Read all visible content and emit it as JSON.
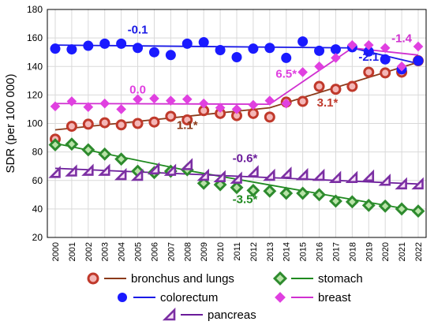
{
  "chart_data": {
    "type": "scatter",
    "title": "",
    "xlabel": "",
    "ylabel": "SDR (per 100 000)",
    "xlim": [
      2000,
      2022
    ],
    "ylim": [
      20,
      180
    ],
    "yticks": [
      20,
      40,
      60,
      80,
      100,
      120,
      140,
      160,
      180
    ],
    "x": [
      2000,
      2001,
      2002,
      2003,
      2004,
      2005,
      2006,
      2007,
      2008,
      2009,
      2010,
      2011,
      2012,
      2013,
      2014,
      2015,
      2016,
      2017,
      2018,
      2019,
      2020,
      2021,
      2022
    ],
    "grid": true,
    "legend_position": "bottom",
    "series": [
      {
        "name": "bronchus and lungs",
        "color": "#c0392b",
        "line_color": "#8b3a1a",
        "marker": "ring",
        "values": [
          89,
          98,
          99.5,
          100.5,
          99,
          100,
          101,
          105,
          102.5,
          109,
          107,
          105.5,
          107,
          104.5,
          115,
          115.5,
          126,
          124,
          126,
          136,
          135.5,
          136,
          144
        ],
        "trend": [
          [
            2000,
            95.5
          ],
          [
            2013,
            111
          ],
          [
            2022,
            143
          ]
        ]
      },
      {
        "name": "stomach",
        "color": "#2e8b2e",
        "line_color": "#1f8a1f",
        "marker": "diamond",
        "values": [
          85,
          85.5,
          81.5,
          78.5,
          75,
          66.5,
          65.5,
          66.5,
          67.5,
          58,
          57,
          55,
          53,
          52.5,
          51,
          51,
          50,
          45.5,
          45,
          42.5,
          42,
          40,
          38.5
        ],
        "trend": [
          [
            2000,
            86
          ],
          [
            2008,
            67
          ],
          [
            2022,
            38.5
          ]
        ]
      },
      {
        "name": "colorectum",
        "color": "#1a1aff",
        "line_color": "#1a1ae6",
        "marker": "circle",
        "values": [
          152.5,
          152,
          154.5,
          156,
          156,
          153,
          150,
          148,
          156,
          157,
          151.5,
          146.5,
          152.5,
          153,
          146,
          157.5,
          151,
          152,
          153.5,
          150.5,
          145,
          138,
          144
        ],
        "trend": [
          [
            2000,
            155
          ],
          [
            2018,
            153
          ],
          [
            2022,
            142
          ]
        ]
      },
      {
        "name": "breast",
        "color": "#e040e0",
        "line_color": "#d030d0",
        "marker": "diamond",
        "values": [
          112,
          115.5,
          111.5,
          114,
          110,
          117,
          117.5,
          116,
          117,
          114,
          111,
          110,
          113,
          116,
          114,
          136,
          140,
          146,
          155,
          155,
          153,
          140,
          154
        ],
        "trend": [
          [
            2000,
            114
          ],
          [
            2013,
            113.5
          ],
          [
            2018,
            153
          ],
          [
            2022,
            148
          ]
        ]
      },
      {
        "name": "pancreas",
        "color": "#7b2fa3",
        "line_color": "#6a1b9a",
        "marker": "wedge",
        "values": [
          65.5,
          66.5,
          67,
          67,
          64,
          63.5,
          68,
          67,
          71,
          63.5,
          62.5,
          61.5,
          66,
          63.5,
          65,
          64,
          63.5,
          62,
          62,
          63,
          60,
          57.5,
          57.5
        ],
        "trend": [
          [
            2000,
            68.5
          ],
          [
            2022,
            57.5
          ]
        ]
      }
    ],
    "annotations": [
      {
        "text": "-0.1",
        "color": "#1a1ae6",
        "x": 2005.0,
        "y": 163
      },
      {
        "text": "0.0",
        "color": "#e040e0",
        "x": 2005.0,
        "y": 121
      },
      {
        "text": "1.1*",
        "color": "#8b3a1a",
        "x": 2008.0,
        "y": 96
      },
      {
        "text": "6.5*",
        "color": "#e040e0",
        "x": 2014.0,
        "y": 132
      },
      {
        "text": "3.1*",
        "color": "#c0392b",
        "x": 2016.5,
        "y": 112
      },
      {
        "text": "-0.6*",
        "color": "#6a1b9a",
        "x": 2011.5,
        "y": 73
      },
      {
        "text": "-3.5*",
        "color": "#1f8a1f",
        "x": 2011.5,
        "y": 44
      },
      {
        "text": "-2.1",
        "color": "#1a1ae6",
        "x": 2019.0,
        "y": 144
      },
      {
        "text": "-1.4",
        "color": "#d030d0",
        "x": 2021.0,
        "y": 157
      }
    ]
  }
}
